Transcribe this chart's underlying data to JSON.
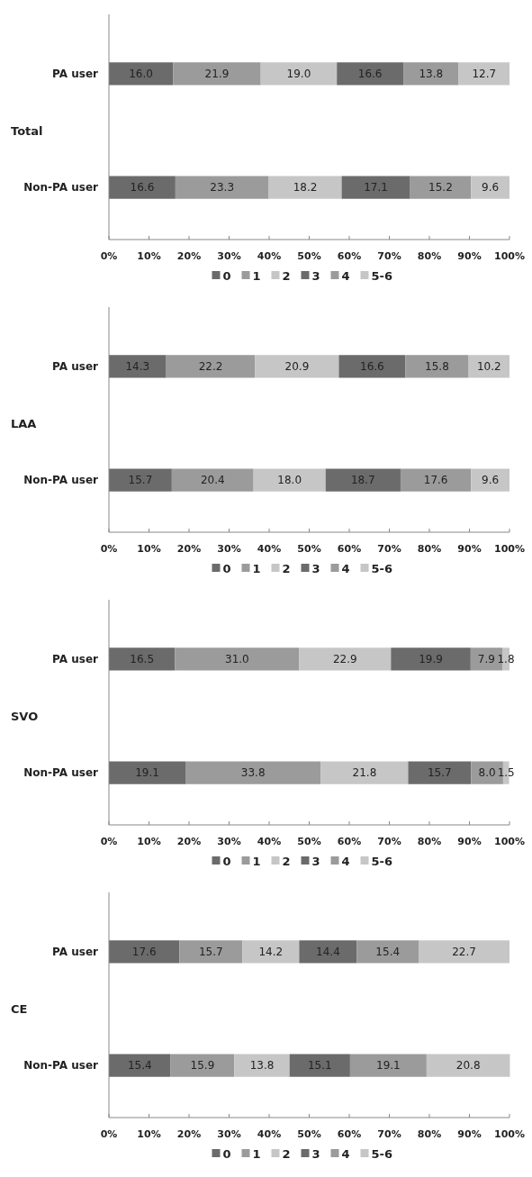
{
  "chart_data": [
    {
      "type": "bar",
      "orientation": "horizontal",
      "stacked": true,
      "ylabel": "Total",
      "categories": [
        "PA user",
        "Non-PA user"
      ],
      "xlim": [
        0,
        100
      ],
      "xticks": [
        {
          "value": 0,
          "label": "0%"
        },
        {
          "value": 10,
          "label": "10%"
        },
        {
          "value": 20,
          "label": "20%"
        },
        {
          "value": 30,
          "label": "30%"
        },
        {
          "value": 40,
          "label": "40%"
        },
        {
          "value": 50,
          "label": "50%"
        },
        {
          "value": 60,
          "label": "60%"
        },
        {
          "value": 70,
          "label": "70%"
        },
        {
          "value": 80,
          "label": "80%"
        },
        {
          "value": 90,
          "label": "90%"
        },
        {
          "value": 100,
          "label": "100%"
        }
      ],
      "legend": "bottom",
      "series": [
        {
          "name": "0",
          "color": "#6b6b6b",
          "values": [
            16.0,
            16.6
          ],
          "value_labels": [
            "16.0",
            "16.6"
          ]
        },
        {
          "name": "1",
          "color": "#9b9b9b",
          "values": [
            21.9,
            23.3
          ],
          "value_labels": [
            "21.9",
            "23.3"
          ]
        },
        {
          "name": "2",
          "color": "#c6c6c6",
          "values": [
            19.0,
            18.2
          ],
          "value_labels": [
            "19.0",
            "18.2"
          ]
        },
        {
          "name": "3",
          "color": "#6b6b6b",
          "values": [
            16.6,
            17.1
          ],
          "value_labels": [
            "16.6",
            "17.1"
          ]
        },
        {
          "name": "4",
          "color": "#9b9b9b",
          "values": [
            13.8,
            15.2
          ],
          "value_labels": [
            "13.8",
            "15.2"
          ]
        },
        {
          "name": "5-6",
          "color": "#c6c6c6",
          "values": [
            12.7,
            9.6
          ],
          "value_labels": [
            "12.7",
            "9.6"
          ]
        }
      ]
    },
    {
      "type": "bar",
      "orientation": "horizontal",
      "stacked": true,
      "ylabel": "LAA",
      "categories": [
        "PA user",
        "Non-PA user"
      ],
      "xlim": [
        0,
        100
      ],
      "xticks": [
        {
          "value": 0,
          "label": "0%"
        },
        {
          "value": 10,
          "label": "10%"
        },
        {
          "value": 20,
          "label": "20%"
        },
        {
          "value": 30,
          "label": "30%"
        },
        {
          "value": 40,
          "label": "40%"
        },
        {
          "value": 50,
          "label": "50%"
        },
        {
          "value": 60,
          "label": "60%"
        },
        {
          "value": 70,
          "label": "70%"
        },
        {
          "value": 80,
          "label": "80%"
        },
        {
          "value": 90,
          "label": "90%"
        },
        {
          "value": 100,
          "label": "100%"
        }
      ],
      "legend": "bottom",
      "series": [
        {
          "name": "0",
          "color": "#6b6b6b",
          "values": [
            14.3,
            15.7
          ],
          "value_labels": [
            "14.3",
            "15.7"
          ]
        },
        {
          "name": "1",
          "color": "#9b9b9b",
          "values": [
            22.2,
            20.4
          ],
          "value_labels": [
            "22.2",
            "20.4"
          ]
        },
        {
          "name": "2",
          "color": "#c6c6c6",
          "values": [
            20.9,
            18.0
          ],
          "value_labels": [
            "20.9",
            "18.0"
          ]
        },
        {
          "name": "3",
          "color": "#6b6b6b",
          "values": [
            16.6,
            18.7
          ],
          "value_labels": [
            "16.6",
            "18.7"
          ]
        },
        {
          "name": "4",
          "color": "#9b9b9b",
          "values": [
            15.8,
            17.6
          ],
          "value_labels": [
            "15.8",
            "17.6"
          ]
        },
        {
          "name": "5-6",
          "color": "#c6c6c6",
          "values": [
            10.2,
            9.6
          ],
          "value_labels": [
            "10.2",
            "9.6"
          ]
        }
      ]
    },
    {
      "type": "bar",
      "orientation": "horizontal",
      "stacked": true,
      "ylabel": "SVO",
      "categories": [
        "PA user",
        "Non-PA user"
      ],
      "xlim": [
        0,
        100
      ],
      "xticks": [
        {
          "value": 0,
          "label": "0%"
        },
        {
          "value": 10,
          "label": "10%"
        },
        {
          "value": 20,
          "label": "20%"
        },
        {
          "value": 30,
          "label": "30%"
        },
        {
          "value": 40,
          "label": "40%"
        },
        {
          "value": 50,
          "label": "50%"
        },
        {
          "value": 60,
          "label": "60%"
        },
        {
          "value": 70,
          "label": "70%"
        },
        {
          "value": 80,
          "label": "80%"
        },
        {
          "value": 90,
          "label": "90%"
        },
        {
          "value": 100,
          "label": "100%"
        }
      ],
      "legend": "bottom",
      "series": [
        {
          "name": "0",
          "color": "#6b6b6b",
          "values": [
            16.5,
            19.1
          ],
          "value_labels": [
            "16.5",
            "19.1"
          ]
        },
        {
          "name": "1",
          "color": "#9b9b9b",
          "values": [
            31.0,
            33.8
          ],
          "value_labels": [
            "31.0",
            "33.8"
          ]
        },
        {
          "name": "2",
          "color": "#c6c6c6",
          "values": [
            22.9,
            21.8
          ],
          "value_labels": [
            "22.9",
            "21.8"
          ]
        },
        {
          "name": "3",
          "color": "#6b6b6b",
          "values": [
            19.9,
            15.7
          ],
          "value_labels": [
            "19.9",
            "15.7"
          ]
        },
        {
          "name": "4",
          "color": "#9b9b9b",
          "values": [
            7.9,
            8.0
          ],
          "value_labels": [
            "7.9",
            "8.0"
          ]
        },
        {
          "name": "5-6",
          "color": "#c6c6c6",
          "values": [
            1.8,
            1.5
          ],
          "value_labels": [
            "1.8",
            "1.5"
          ]
        }
      ]
    },
    {
      "type": "bar",
      "orientation": "horizontal",
      "stacked": true,
      "ylabel": "CE",
      "categories": [
        "PA user",
        "Non-PA user"
      ],
      "xlim": [
        0,
        100
      ],
      "xticks": [
        {
          "value": 0,
          "label": "0%"
        },
        {
          "value": 10,
          "label": "10%"
        },
        {
          "value": 20,
          "label": "20%"
        },
        {
          "value": 30,
          "label": "30%"
        },
        {
          "value": 40,
          "label": "40%"
        },
        {
          "value": 50,
          "label": "50%"
        },
        {
          "value": 60,
          "label": "60%"
        },
        {
          "value": 70,
          "label": "70%"
        },
        {
          "value": 80,
          "label": "80%"
        },
        {
          "value": 90,
          "label": "90%"
        },
        {
          "value": 100,
          "label": "100%"
        }
      ],
      "legend": "bottom",
      "series": [
        {
          "name": "0",
          "color": "#6b6b6b",
          "values": [
            17.6,
            15.4
          ],
          "value_labels": [
            "17.6",
            "15.4"
          ]
        },
        {
          "name": "1",
          "color": "#9b9b9b",
          "values": [
            15.7,
            15.9
          ],
          "value_labels": [
            "15.7",
            "15.9"
          ]
        },
        {
          "name": "2",
          "color": "#c6c6c6",
          "values": [
            14.2,
            13.8
          ],
          "value_labels": [
            "14.2",
            "13.8"
          ]
        },
        {
          "name": "3",
          "color": "#6b6b6b",
          "values": [
            14.4,
            15.1
          ],
          "value_labels": [
            "14.4",
            "15.1"
          ]
        },
        {
          "name": "4",
          "color": "#9b9b9b",
          "values": [
            15.4,
            19.1
          ],
          "value_labels": [
            "15.4",
            "19.1"
          ]
        },
        {
          "name": "5-6",
          "color": "#c6c6c6",
          "values": [
            22.7,
            20.8
          ],
          "value_labels": [
            "22.7",
            "20.8"
          ]
        }
      ]
    }
  ]
}
